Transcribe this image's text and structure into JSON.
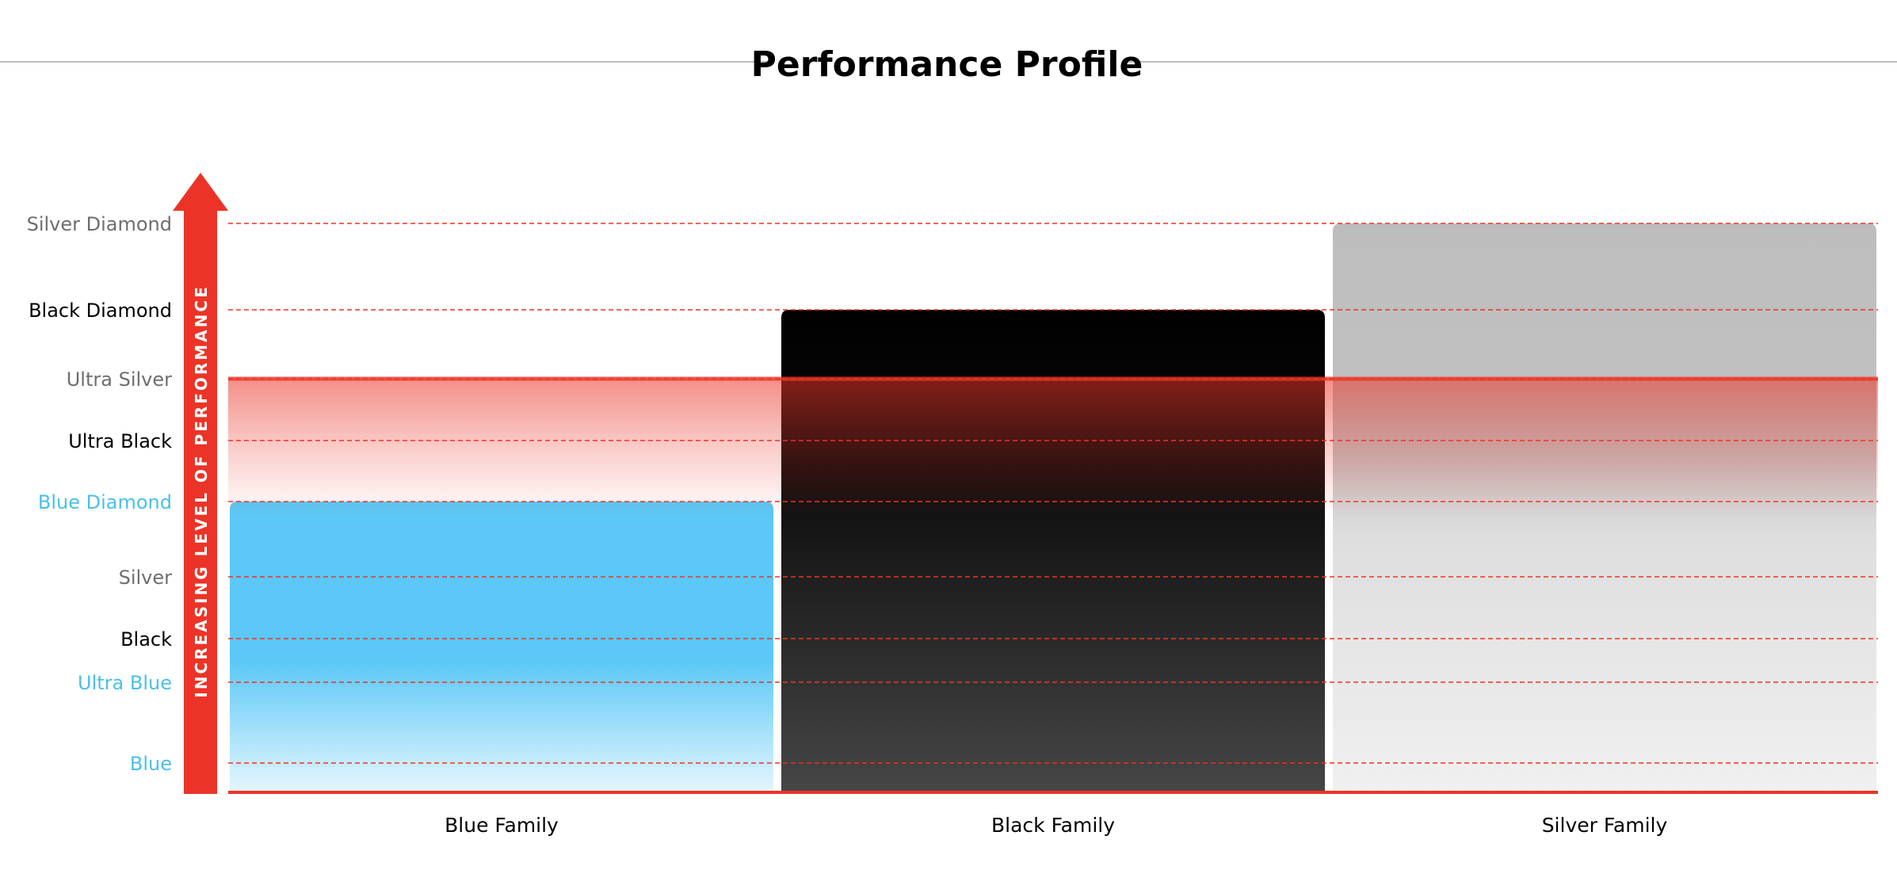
{
  "colors": {
    "accent_red": "#EB3427",
    "blue_family": "#5BC8F7",
    "blue_label": "#4BBFEA",
    "black_family": "#000000",
    "silver_family": "#BEBEBE",
    "silver_label": "#6E6E6E",
    "title_rule": "#BDBDBD"
  },
  "chart_data": {
    "type": "bar",
    "title": "Performance Profile",
    "ylabel": "INCREASING LEVEL OF PERFORMANCE",
    "xlabel": "",
    "y_ticks": [
      {
        "label": "Blue",
        "family": "blue"
      },
      {
        "label": "Ultra Blue",
        "family": "blue"
      },
      {
        "label": "Black",
        "family": "black"
      },
      {
        "label": "Silver",
        "family": "silver"
      },
      {
        "label": "Blue Diamond",
        "family": "blue"
      },
      {
        "label": "Ultra Black",
        "family": "black"
      },
      {
        "label": "Ultra Silver",
        "family": "silver"
      },
      {
        "label": "Black Diamond",
        "family": "black"
      },
      {
        "label": "Silver Diamond",
        "family": "silver"
      }
    ],
    "categories": [
      "Blue Family",
      "Black Family",
      "Silver Family"
    ],
    "values": [
      "Blue Diamond",
      "Black Diamond",
      "Silver Diamond"
    ],
    "reference_line": "Ultra Silver",
    "grid": "dashed horizontal at each level"
  }
}
